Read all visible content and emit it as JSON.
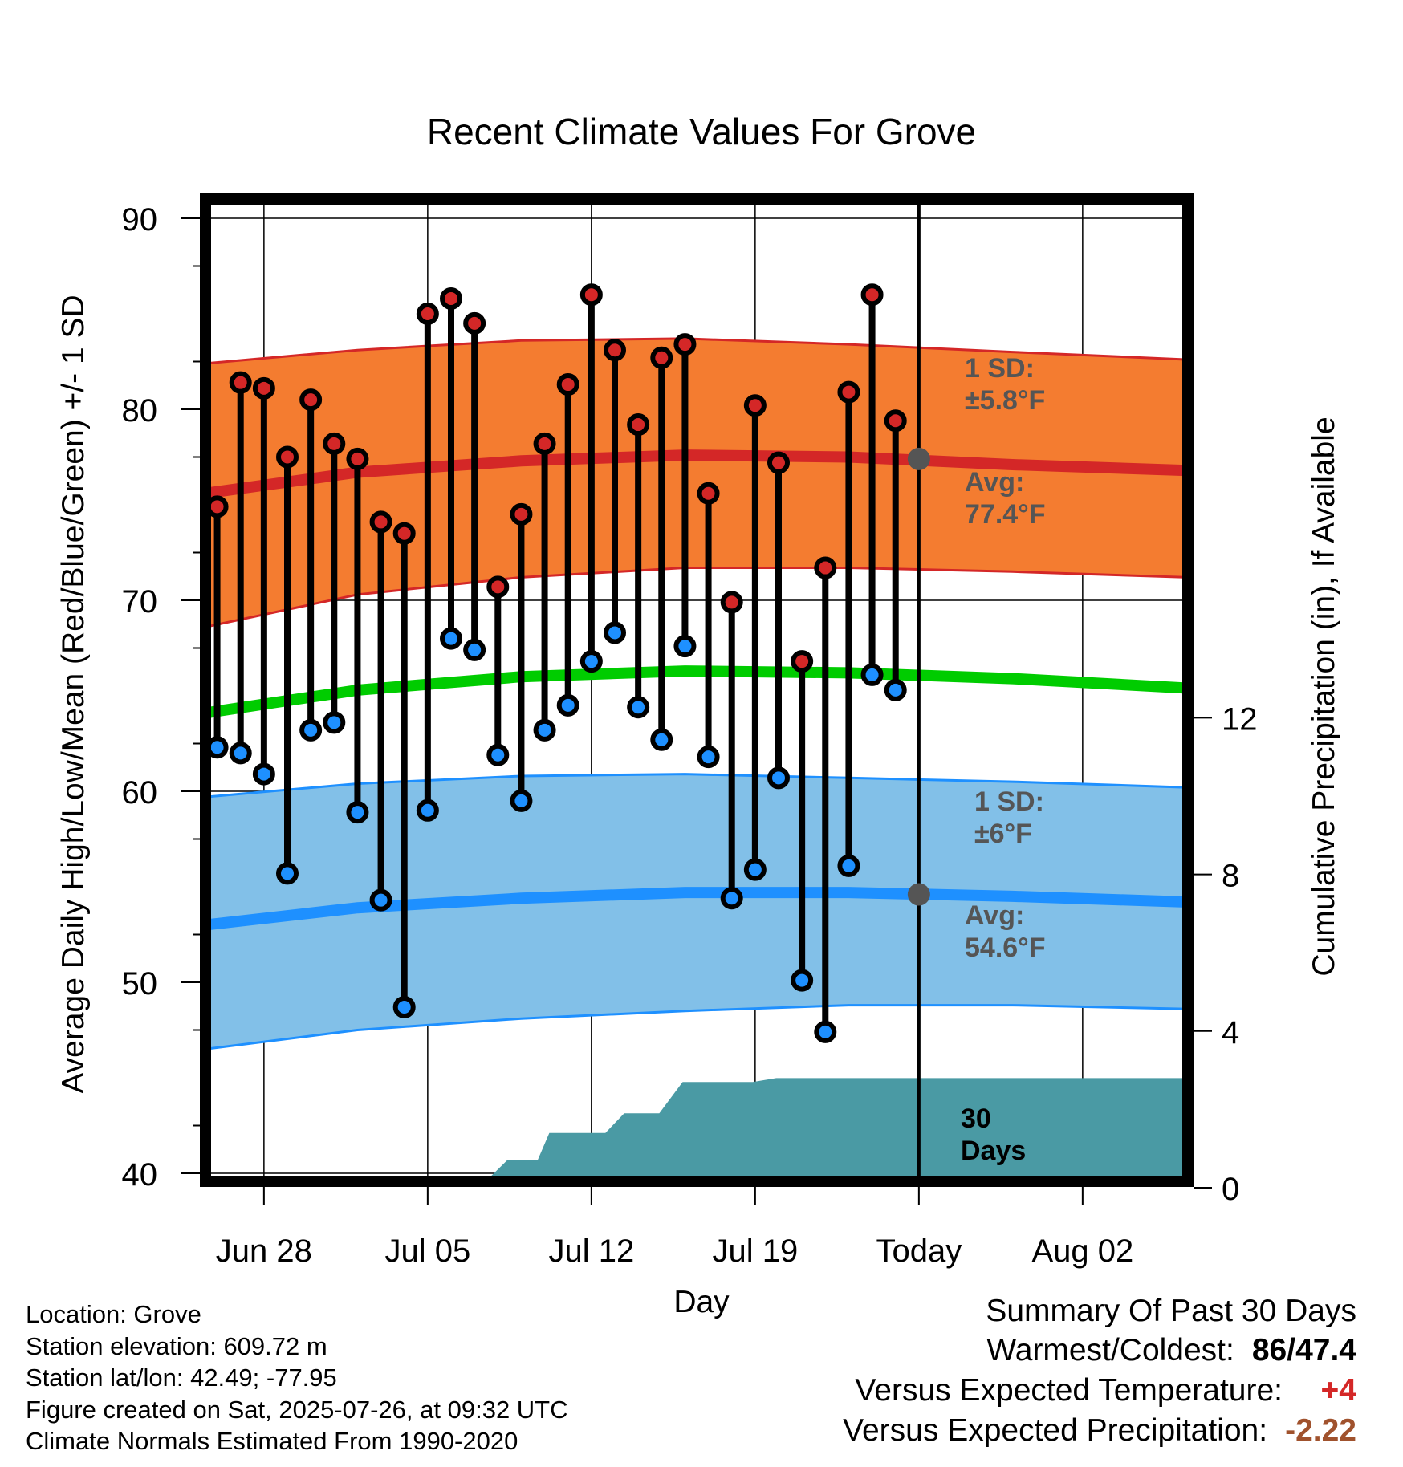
{
  "chart_data": {
    "type": "line",
    "title": "Recent Climate Values For Grove",
    "xlabel": "Day",
    "ylabel": "Average Daily High/Low/Mean (Red/Blue/Green) +/- 1 SD",
    "y2label": "Cumulative Precipitation (in), If Available",
    "ylim": [
      40,
      90
    ],
    "y2lim": [
      0,
      30
    ],
    "yticks": [
      "40",
      "50",
      "60",
      "70",
      "80",
      "90"
    ],
    "y2ticks": [
      "0",
      "4",
      "8",
      "12"
    ],
    "xlim_days": [
      -30.5,
      11.5
    ],
    "xticks": [
      {
        "label": "Jun 28",
        "day": -28
      },
      {
        "label": "Jul 05",
        "day": -21
      },
      {
        "label": "Jul 12",
        "day": -14
      },
      {
        "label": "Jul 19",
        "day": -7
      },
      {
        "label": "Today",
        "day": 0
      },
      {
        "label": "Aug 02",
        "day": 7
      }
    ],
    "days": [
      -30.5,
      -24,
      -17,
      -10,
      -3,
      4,
      11.5
    ],
    "high_normal": [
      75.6,
      76.7,
      77.3,
      77.6,
      77.5,
      77.1,
      76.8
    ],
    "high_sd_upper": [
      82.4,
      83.1,
      83.6,
      83.7,
      83.4,
      83.0,
      82.6
    ],
    "high_sd_lower": [
      68.6,
      70.3,
      71.2,
      71.7,
      71.7,
      71.5,
      71.2
    ],
    "mean_normal": [
      64.1,
      65.3,
      66.0,
      66.3,
      66.2,
      65.9,
      65.4
    ],
    "low_normal": [
      53.0,
      53.9,
      54.4,
      54.7,
      54.7,
      54.5,
      54.2
    ],
    "low_sd_upper": [
      59.7,
      60.4,
      60.8,
      60.9,
      60.7,
      60.5,
      60.2
    ],
    "low_sd_lower": [
      46.5,
      47.5,
      48.1,
      48.5,
      48.8,
      48.8,
      48.6
    ],
    "obs_days": [
      -30,
      -29,
      -28,
      -27,
      -26,
      -25,
      -24,
      -23,
      -22,
      -21,
      -20,
      -19,
      -18,
      -17,
      -16,
      -15,
      -14,
      -13,
      -12,
      -11,
      -10,
      -9,
      -8,
      -7,
      -6,
      -5,
      -4,
      -3,
      -2,
      -1
    ],
    "highs": [
      74.9,
      81.4,
      81.1,
      77.5,
      80.5,
      78.2,
      77.4,
      74.1,
      73.5,
      85.0,
      85.8,
      84.5,
      70.7,
      74.5,
      78.2,
      81.3,
      86.0,
      83.1,
      79.2,
      82.7,
      83.4,
      75.6,
      69.9,
      80.2,
      77.2,
      66.8,
      71.7,
      80.9,
      86.0,
      79.4
    ],
    "lows": [
      62.3,
      62.0,
      60.9,
      55.7,
      63.2,
      63.6,
      58.9,
      54.3,
      48.7,
      59.0,
      68.0,
      67.4,
      61.9,
      59.5,
      63.2,
      64.5,
      66.8,
      68.3,
      64.4,
      62.7,
      67.6,
      61.8,
      54.4,
      55.9,
      60.7,
      50.1,
      47.4,
      56.1,
      66.1,
      65.3
    ],
    "precip_days": [
      -30.5,
      -23.8,
      -23.5,
      -19.2,
      -18.8,
      -17.6,
      -17.1,
      -16.3,
      -15.8,
      -13.8,
      -13.4,
      -12.6,
      -11.6,
      -11.1,
      -10.1,
      -9.1,
      -8.1,
      -7.1,
      -6.1,
      11.5
    ],
    "precip_values": [
      0,
      0,
      0.1,
      0.1,
      0,
      0.7,
      0.7,
      0.7,
      1.4,
      1.4,
      1.4,
      1.9,
      1.9,
      1.9,
      2.7,
      2.7,
      2.7,
      2.7,
      2.8,
      2.8
    ],
    "precip_label": "30 Days",
    "high_sd_label": [
      "1 SD:",
      "±5.8°F"
    ],
    "high_avg_label": [
      "Avg:",
      "77.4°F"
    ],
    "low_sd_label": [
      "1 SD:",
      "±6°F"
    ],
    "low_avg_label": [
      "Avg:",
      "54.6°F"
    ],
    "grid": true,
    "colors": {
      "high_band": "#f47c30",
      "high_line": "#d42727",
      "low_band": "#82c0e8",
      "low_line": "#1e90ff",
      "mean_line": "#00cc00",
      "precip": "#4a9aa4",
      "annotation": "#555555",
      "high_marker": "#d42727",
      "low_marker": "#1e90ff"
    }
  },
  "info": {
    "location": "Location: Grove",
    "elevation": "Station elevation: 609.72 m",
    "latlon": "Station lat/lon: 42.49; -77.95",
    "created": "Figure created on Sat, 2025-07-26, at 09:32 UTC",
    "normals": "Climate Normals Estimated From 1990-2020"
  },
  "summary": {
    "title": "Summary Of Past 30 Days",
    "warm_cold_label": "Warmest/Coldest:",
    "warmest": "86",
    "sep": "/",
    "coldest": "47.4",
    "temp_label": "Versus Expected Temperature:",
    "temp_value": "+4",
    "precip_label": "Versus Expected Precipitation:",
    "precip_value": "-2.22",
    "temp_color": "#d42727",
    "precip_color": "#a0522d"
  }
}
